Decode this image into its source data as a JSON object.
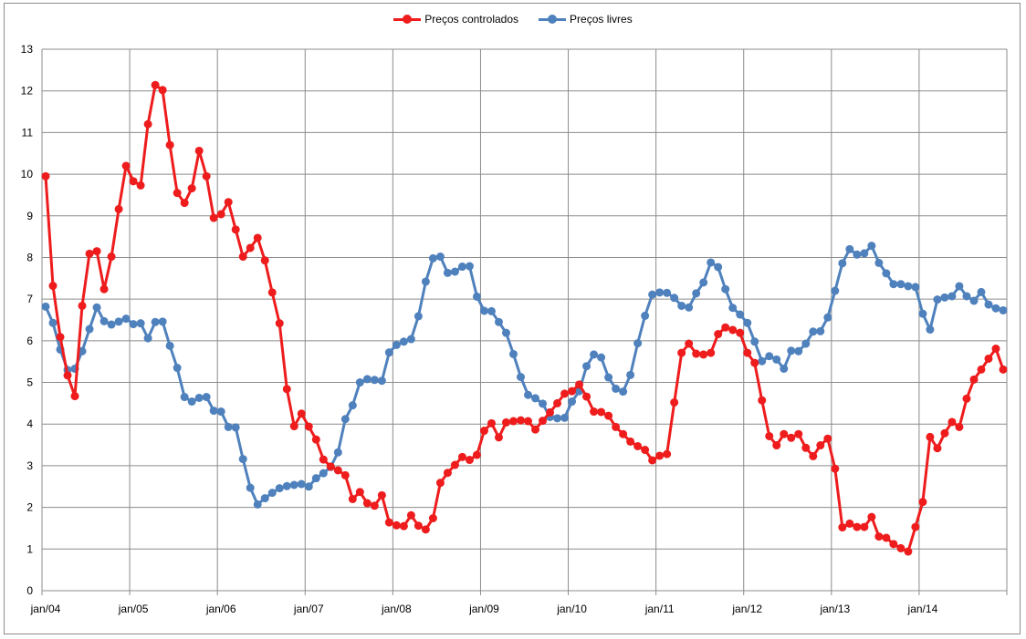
{
  "chart_data": {
    "type": "line",
    "title": "",
    "xlabel": "",
    "ylabel": "",
    "ylim": [
      0,
      13
    ],
    "yticks": [
      0,
      1,
      2,
      3,
      4,
      5,
      6,
      7,
      8,
      9,
      10,
      11,
      12,
      13
    ],
    "x_start": "2004-01",
    "x_end": "2014-12",
    "xtick_labels": [
      "jan/04",
      "jan/05",
      "jan/06",
      "jan/07",
      "jan/08",
      "jan/09",
      "jan/10",
      "jan/11",
      "jan/12",
      "jan/13",
      "jan/14"
    ],
    "grid": true,
    "legend_position": "top-center",
    "series": [
      {
        "name": "Preços controlados",
        "color": "#ee1c1c",
        "values": [
          9.95,
          7.32,
          6.09,
          5.17,
          4.67,
          6.84,
          8.09,
          8.15,
          7.24,
          8.02,
          9.16,
          10.2,
          9.83,
          9.73,
          11.2,
          12.14,
          12.02,
          10.7,
          9.55,
          9.31,
          9.66,
          10.56,
          9.95,
          8.95,
          9.04,
          9.33,
          8.67,
          8.02,
          8.23,
          8.47,
          7.93,
          7.16,
          6.42,
          4.84,
          3.95,
          4.25,
          3.94,
          3.63,
          3.15,
          2.98,
          2.89,
          2.77,
          2.2,
          2.37,
          2.1,
          2.04,
          2.29,
          1.64,
          1.57,
          1.55,
          1.81,
          1.56,
          1.47,
          1.74,
          2.59,
          2.83,
          3.02,
          3.21,
          3.14,
          3.26,
          3.84,
          4.02,
          3.68,
          4.04,
          4.07,
          4.09,
          4.07,
          3.87,
          4.08,
          4.28,
          4.5,
          4.73,
          4.79,
          4.95,
          4.66,
          4.3,
          4.29,
          4.2,
          3.93,
          3.76,
          3.58,
          3.47,
          3.38,
          3.13,
          3.24,
          3.28,
          4.52,
          5.71,
          5.93,
          5.69,
          5.67,
          5.71,
          6.16,
          6.32,
          6.26,
          6.19,
          5.71,
          5.47,
          4.57,
          3.71,
          3.49,
          3.76,
          3.67,
          3.76,
          3.43,
          3.23,
          3.49,
          3.65,
          2.93,
          1.52,
          1.61,
          1.53,
          1.53,
          1.77,
          1.3,
          1.27,
          1.12,
          1.02,
          0.94,
          1.53,
          2.13,
          3.69,
          3.42,
          3.78,
          4.05,
          3.93,
          4.61,
          5.07,
          5.31,
          5.57,
          5.81,
          5.31
        ]
      },
      {
        "name": "Preços livres",
        "color": "#4f81bd",
        "values": [
          6.82,
          6.43,
          5.79,
          5.3,
          5.33,
          5.75,
          6.28,
          6.8,
          6.47,
          6.39,
          6.46,
          6.53,
          6.4,
          6.42,
          6.06,
          6.45,
          6.46,
          5.88,
          5.35,
          4.65,
          4.54,
          4.63,
          4.65,
          4.32,
          4.3,
          3.93,
          3.92,
          3.16,
          2.47,
          2.07,
          2.22,
          2.35,
          2.46,
          2.51,
          2.54,
          2.56,
          2.5,
          2.7,
          2.82,
          2.97,
          3.32,
          4.12,
          4.45,
          5.0,
          5.08,
          5.06,
          5.04,
          5.72,
          5.9,
          5.98,
          6.04,
          6.59,
          7.42,
          7.98,
          8.02,
          7.63,
          7.66,
          7.78,
          7.79,
          7.06,
          6.72,
          6.71,
          6.45,
          6.19,
          5.68,
          5.13,
          4.7,
          4.62,
          4.49,
          4.17,
          4.14,
          4.15,
          4.54,
          4.79,
          5.39,
          5.67,
          5.6,
          5.12,
          4.85,
          4.78,
          5.18,
          5.94,
          6.6,
          7.11,
          7.16,
          7.15,
          7.03,
          6.84,
          6.8,
          7.14,
          7.4,
          7.88,
          7.77,
          7.24,
          6.79,
          6.63,
          6.43,
          5.98,
          5.51,
          5.63,
          5.55,
          5.33,
          5.76,
          5.75,
          5.93,
          6.22,
          6.23,
          6.56,
          7.2,
          7.86,
          8.2,
          8.07,
          8.1,
          8.28,
          7.87,
          7.62,
          7.36,
          7.36,
          7.31,
          7.29,
          6.65,
          6.27,
          6.99,
          7.04,
          7.07,
          7.31,
          7.07,
          6.96,
          7.17,
          6.87,
          6.78,
          6.73
        ]
      }
    ]
  }
}
